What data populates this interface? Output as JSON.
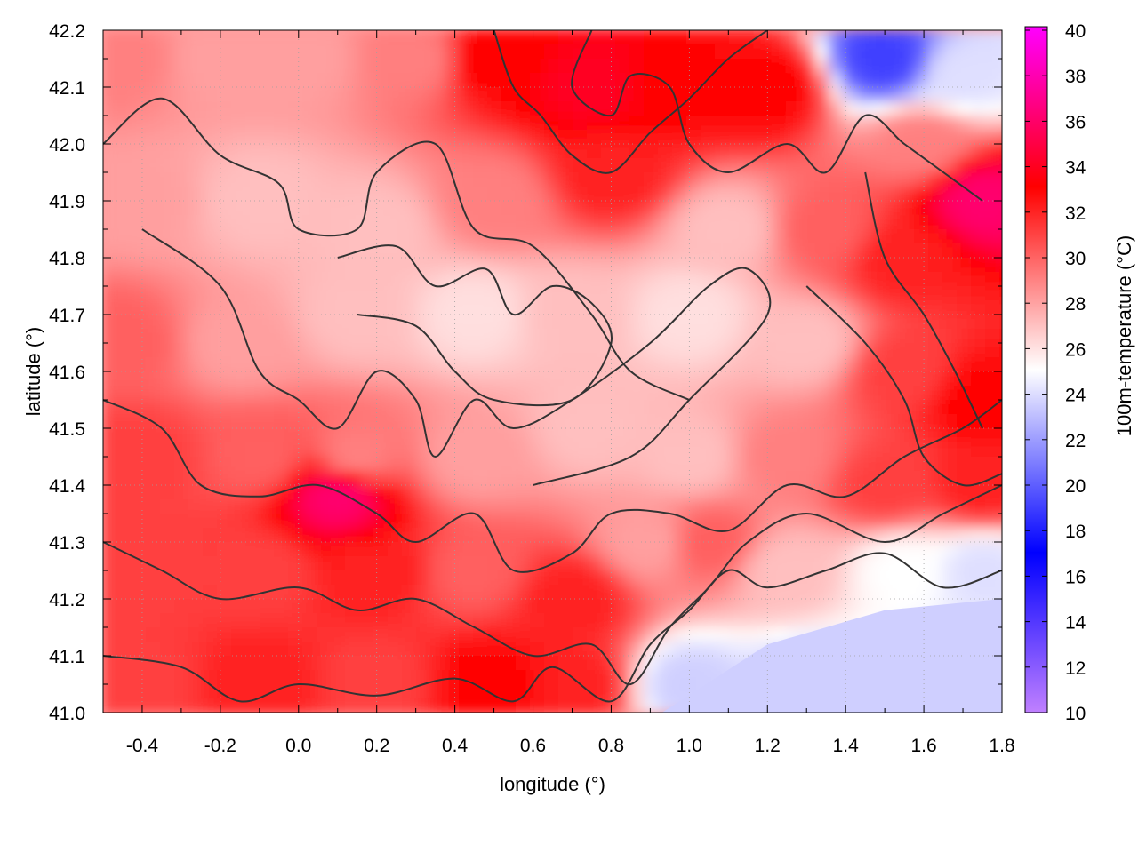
{
  "chart_data": {
    "type": "heatmap",
    "title": "",
    "xlabel": "longitude (°)",
    "ylabel": "latitude (°)",
    "colorbar_label": "100m-temperature (°C)",
    "xlim": [
      -0.5,
      1.8
    ],
    "ylim": [
      41.0,
      42.2
    ],
    "clim": [
      10,
      40
    ],
    "x_ticks": [
      -0.4,
      -0.2,
      0.0,
      0.2,
      0.4,
      0.6,
      0.8,
      1.0,
      1.2,
      1.4,
      1.6,
      1.8
    ],
    "x_tick_labels": [
      "-0.4",
      "-0.2",
      "0.0",
      "0.2",
      "0.4",
      "0.6",
      "0.8",
      "1.0",
      "1.2",
      "1.4",
      "1.6",
      "1.8"
    ],
    "y_ticks": [
      41.0,
      41.1,
      41.2,
      41.3,
      41.4,
      41.5,
      41.6,
      41.7,
      41.8,
      41.9,
      42.0,
      42.1,
      42.2
    ],
    "y_tick_labels": [
      "41.0",
      "41.1",
      "41.2",
      "41.3",
      "41.4",
      "41.5",
      "41.6",
      "41.7",
      "41.8",
      "41.9",
      "42.0",
      "42.1",
      "42.2"
    ],
    "colorbar_ticks": [
      10,
      12,
      14,
      16,
      18,
      20,
      22,
      24,
      26,
      28,
      30,
      32,
      34,
      36,
      38,
      40
    ],
    "colorbar_tick_labels": [
      "10",
      "12",
      "14",
      "16",
      "18",
      "20",
      "22",
      "24",
      "26",
      "28",
      "30",
      "32",
      "34",
      "36",
      "38",
      "40"
    ],
    "colormap": [
      {
        "value": 10,
        "color": "#c080ff"
      },
      {
        "value": 17,
        "color": "#0000ff"
      },
      {
        "value": 25,
        "color": "#ffffff"
      },
      {
        "value": 33,
        "color": "#ff0000"
      },
      {
        "value": 40,
        "color": "#ff00ff"
      }
    ],
    "grid": true,
    "field_samples": [
      {
        "lon": -0.45,
        "lat": 42.15,
        "t": 29
      },
      {
        "lon": -0.2,
        "lat": 42.15,
        "t": 28
      },
      {
        "lon": 0.0,
        "lat": 42.15,
        "t": 28
      },
      {
        "lon": 0.3,
        "lat": 42.15,
        "t": 29
      },
      {
        "lon": 0.5,
        "lat": 42.15,
        "t": 33
      },
      {
        "lon": 0.75,
        "lat": 42.1,
        "t": 34
      },
      {
        "lon": 0.95,
        "lat": 42.1,
        "t": 33
      },
      {
        "lon": 1.2,
        "lat": 42.1,
        "t": 33
      },
      {
        "lon": 1.5,
        "lat": 42.15,
        "t": 19
      },
      {
        "lon": 1.7,
        "lat": 42.12,
        "t": 24
      },
      {
        "lon": 1.6,
        "lat": 42.0,
        "t": 29
      },
      {
        "lon": 1.75,
        "lat": 41.9,
        "t": 36
      },
      {
        "lon": -0.4,
        "lat": 41.9,
        "t": 28
      },
      {
        "lon": -0.1,
        "lat": 41.9,
        "t": 27
      },
      {
        "lon": 0.2,
        "lat": 41.85,
        "t": 27
      },
      {
        "lon": 0.5,
        "lat": 41.9,
        "t": 29
      },
      {
        "lon": 0.8,
        "lat": 41.95,
        "t": 32
      },
      {
        "lon": 1.1,
        "lat": 41.85,
        "t": 27
      },
      {
        "lon": 1.35,
        "lat": 41.85,
        "t": 30
      },
      {
        "lon": 1.55,
        "lat": 41.8,
        "t": 32
      },
      {
        "lon": -0.45,
        "lat": 41.65,
        "t": 30
      },
      {
        "lon": -0.15,
        "lat": 41.65,
        "t": 28
      },
      {
        "lon": 0.15,
        "lat": 41.7,
        "t": 27
      },
      {
        "lon": 0.45,
        "lat": 41.7,
        "t": 26
      },
      {
        "lon": 0.7,
        "lat": 41.7,
        "t": 27
      },
      {
        "lon": 1.0,
        "lat": 41.7,
        "t": 26
      },
      {
        "lon": 1.3,
        "lat": 41.65,
        "t": 27
      },
      {
        "lon": 1.55,
        "lat": 41.6,
        "t": 31
      },
      {
        "lon": 1.75,
        "lat": 41.55,
        "t": 33
      },
      {
        "lon": -0.4,
        "lat": 41.45,
        "t": 31
      },
      {
        "lon": -0.1,
        "lat": 41.45,
        "t": 30
      },
      {
        "lon": 0.15,
        "lat": 41.45,
        "t": 29
      },
      {
        "lon": 0.45,
        "lat": 41.45,
        "t": 28
      },
      {
        "lon": 0.75,
        "lat": 41.5,
        "t": 27
      },
      {
        "lon": 1.0,
        "lat": 41.45,
        "t": 27
      },
      {
        "lon": 1.25,
        "lat": 41.45,
        "t": 29
      },
      {
        "lon": 1.5,
        "lat": 41.4,
        "t": 31
      },
      {
        "lon": 1.75,
        "lat": 41.4,
        "t": 32
      },
      {
        "lon": 0.1,
        "lat": 41.38,
        "t": 36
      },
      {
        "lon": -0.4,
        "lat": 41.25,
        "t": 31
      },
      {
        "lon": -0.1,
        "lat": 41.25,
        "t": 31
      },
      {
        "lon": 0.2,
        "lat": 41.25,
        "t": 32
      },
      {
        "lon": 0.45,
        "lat": 41.25,
        "t": 30
      },
      {
        "lon": 0.7,
        "lat": 41.2,
        "t": 32
      },
      {
        "lon": 0.9,
        "lat": 41.3,
        "t": 28
      },
      {
        "lon": 1.05,
        "lat": 41.3,
        "t": 30
      },
      {
        "lon": 1.25,
        "lat": 41.25,
        "t": 27
      },
      {
        "lon": 1.55,
        "lat": 41.25,
        "t": 25
      },
      {
        "lon": 1.75,
        "lat": 41.25,
        "t": 24
      },
      {
        "lon": -0.4,
        "lat": 41.05,
        "t": 31
      },
      {
        "lon": -0.1,
        "lat": 41.05,
        "t": 32
      },
      {
        "lon": 0.2,
        "lat": 41.05,
        "t": 31
      },
      {
        "lon": 0.5,
        "lat": 41.05,
        "t": 33
      },
      {
        "lon": 0.7,
        "lat": 41.05,
        "t": 32
      },
      {
        "lon": 1.0,
        "lat": 41.05,
        "t": 23.5
      },
      {
        "lon": 1.3,
        "lat": 41.05,
        "t": 23.5
      },
      {
        "lon": 1.6,
        "lat": 41.05,
        "t": 23.5
      },
      {
        "lon": 1.78,
        "lat": 41.05,
        "t": 23.5
      }
    ],
    "sea_region": [
      [
        0.93,
        41.0
      ],
      [
        1.2,
        41.12
      ],
      [
        1.5,
        41.18
      ],
      [
        1.8,
        41.2
      ],
      [
        1.8,
        41.0
      ]
    ],
    "contours": [
      [
        [
          -0.5,
          42.0
        ],
        [
          -0.35,
          42.08
        ],
        [
          -0.2,
          41.98
        ],
        [
          -0.05,
          41.93
        ],
        [
          0.0,
          41.85
        ],
        [
          0.15,
          41.85
        ],
        [
          0.2,
          41.95
        ],
        [
          0.35,
          42.0
        ],
        [
          0.45,
          41.85
        ],
        [
          0.6,
          41.82
        ],
        [
          0.75,
          41.7
        ],
        [
          0.85,
          41.6
        ],
        [
          1.0,
          41.55
        ]
      ],
      [
        [
          -0.4,
          41.85
        ],
        [
          -0.2,
          41.75
        ],
        [
          -0.1,
          41.6
        ],
        [
          0.0,
          41.55
        ],
        [
          0.1,
          41.5
        ],
        [
          0.2,
          41.6
        ],
        [
          0.3,
          41.55
        ],
        [
          0.35,
          41.45
        ],
        [
          0.45,
          41.55
        ],
        [
          0.55,
          41.5
        ],
        [
          0.7,
          41.55
        ],
        [
          0.9,
          41.65
        ],
        [
          1.05,
          41.75
        ],
        [
          1.15,
          41.78
        ],
        [
          1.2,
          41.7
        ],
        [
          1.0,
          41.55
        ],
        [
          0.85,
          41.45
        ],
        [
          0.6,
          41.4
        ]
      ],
      [
        [
          0.1,
          41.8
        ],
        [
          0.25,
          41.82
        ],
        [
          0.35,
          41.75
        ],
        [
          0.48,
          41.78
        ],
        [
          0.55,
          41.7
        ],
        [
          0.65,
          41.75
        ],
        [
          0.75,
          41.72
        ],
        [
          0.8,
          41.65
        ],
        [
          0.7,
          41.55
        ],
        [
          0.5,
          41.55
        ],
        [
          0.4,
          41.6
        ],
        [
          0.3,
          41.68
        ],
        [
          0.15,
          41.7
        ]
      ],
      [
        [
          -0.5,
          41.55
        ],
        [
          -0.35,
          41.5
        ],
        [
          -0.25,
          41.4
        ],
        [
          -0.1,
          41.38
        ],
        [
          0.05,
          41.4
        ],
        [
          0.2,
          41.35
        ],
        [
          0.3,
          41.3
        ],
        [
          0.45,
          41.35
        ],
        [
          0.55,
          41.25
        ],
        [
          0.7,
          41.28
        ],
        [
          0.8,
          41.35
        ],
        [
          0.95,
          41.35
        ],
        [
          1.1,
          41.32
        ],
        [
          1.25,
          41.4
        ],
        [
          1.4,
          41.38
        ],
        [
          1.55,
          41.45
        ],
        [
          1.7,
          41.5
        ],
        [
          1.8,
          41.55
        ]
      ],
      [
        [
          -0.5,
          41.3
        ],
        [
          -0.35,
          41.25
        ],
        [
          -0.2,
          41.2
        ],
        [
          0.0,
          41.22
        ],
        [
          0.15,
          41.18
        ],
        [
          0.3,
          41.2
        ],
        [
          0.45,
          41.15
        ],
        [
          0.6,
          41.1
        ],
        [
          0.75,
          41.12
        ],
        [
          0.85,
          41.05
        ],
        [
          0.95,
          41.15
        ],
        [
          1.05,
          41.22
        ],
        [
          1.15,
          41.3
        ],
        [
          1.3,
          41.35
        ],
        [
          1.5,
          41.3
        ],
        [
          1.65,
          41.35
        ],
        [
          1.8,
          41.4
        ]
      ],
      [
        [
          -0.5,
          41.1
        ],
        [
          -0.3,
          41.08
        ],
        [
          -0.15,
          41.02
        ],
        [
          0.0,
          41.05
        ],
        [
          0.2,
          41.03
        ],
        [
          0.4,
          41.06
        ],
        [
          0.55,
          41.02
        ],
        [
          0.65,
          41.08
        ],
        [
          0.8,
          41.02
        ],
        [
          0.9,
          41.12
        ],
        [
          1.0,
          41.18
        ],
        [
          1.1,
          41.25
        ],
        [
          1.2,
          41.22
        ],
        [
          1.35,
          41.25
        ],
        [
          1.5,
          41.28
        ],
        [
          1.65,
          41.22
        ],
        [
          1.8,
          41.25
        ]
      ],
      [
        [
          0.75,
          42.2
        ],
        [
          0.7,
          42.1
        ],
        [
          0.8,
          42.05
        ],
        [
          0.85,
          42.12
        ],
        [
          0.95,
          42.1
        ],
        [
          1.0,
          42.0
        ],
        [
          1.1,
          41.95
        ],
        [
          1.25,
          42.0
        ],
        [
          1.35,
          41.95
        ],
        [
          1.45,
          42.05
        ],
        [
          1.55,
          42.0
        ],
        [
          1.65,
          41.95
        ],
        [
          1.75,
          41.9
        ]
      ],
      [
        [
          0.5,
          42.2
        ],
        [
          0.55,
          42.1
        ],
        [
          0.62,
          42.05
        ],
        [
          0.7,
          41.98
        ],
        [
          0.8,
          41.95
        ],
        [
          0.9,
          42.02
        ],
        [
          1.0,
          42.08
        ],
        [
          1.1,
          42.15
        ],
        [
          1.2,
          42.2
        ]
      ],
      [
        [
          1.3,
          41.75
        ],
        [
          1.45,
          41.65
        ],
        [
          1.55,
          41.55
        ],
        [
          1.6,
          41.45
        ],
        [
          1.7,
          41.4
        ],
        [
          1.8,
          41.42
        ]
      ],
      [
        [
          1.45,
          41.95
        ],
        [
          1.5,
          41.8
        ],
        [
          1.6,
          41.7
        ],
        [
          1.68,
          41.6
        ],
        [
          1.75,
          41.5
        ]
      ]
    ]
  }
}
